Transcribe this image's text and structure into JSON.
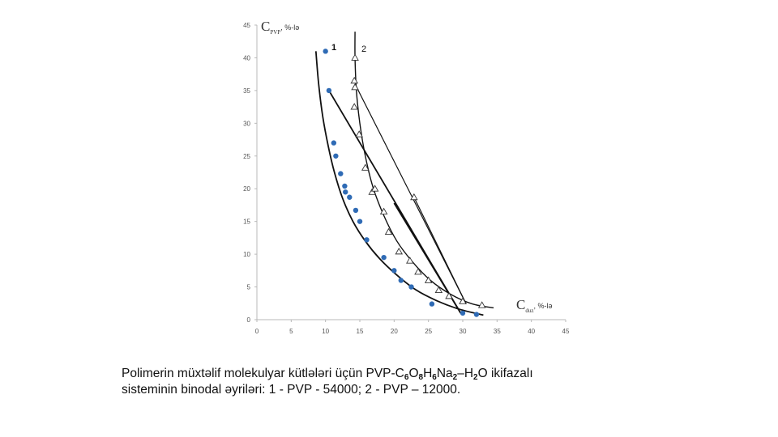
{
  "chart_data": {
    "type": "scatter",
    "x_axis": {
      "range": [
        0,
        45
      ],
      "ticks": [
        0,
        5,
        10,
        15,
        20,
        25,
        30,
        35,
        40,
        45
      ]
    },
    "y_axis": {
      "range": [
        0,
        45
      ],
      "ticks": [
        0,
        5,
        10,
        15,
        20,
        25,
        30,
        35,
        40,
        45
      ]
    },
    "ylabel": {
      "main": "C",
      "sub": "PVP",
      "unit": ", %-lə"
    },
    "xlabel": {
      "main": "C",
      "sub": "duz",
      "unit": ", %-lə"
    },
    "series": [
      {
        "name": "1",
        "marker": "circle",
        "color": "#2f6bb5",
        "points": [
          [
            10,
            41
          ],
          [
            10.5,
            35
          ],
          [
            11.2,
            27
          ],
          [
            11.5,
            25
          ],
          [
            12.2,
            22.3
          ],
          [
            12.8,
            20.4
          ],
          [
            12.9,
            19.5
          ],
          [
            13.5,
            18.7
          ],
          [
            14.4,
            16.7
          ],
          [
            15,
            15
          ],
          [
            16,
            12.2
          ],
          [
            18.5,
            9.5
          ],
          [
            20,
            7.5
          ],
          [
            21,
            6
          ],
          [
            22.5,
            5
          ],
          [
            25.5,
            2.4
          ],
          [
            30,
            1
          ],
          [
            32,
            0.8
          ]
        ],
        "binodal": [
          [
            8.6,
            41
          ],
          [
            9,
            36
          ],
          [
            9.6,
            31
          ],
          [
            10.4,
            26.5
          ],
          [
            11.3,
            22.5
          ],
          [
            12.5,
            18.5
          ],
          [
            14,
            15
          ],
          [
            15.8,
            12
          ],
          [
            17.9,
            9.3
          ],
          [
            20.3,
            6.9
          ],
          [
            23.1,
            4.6
          ],
          [
            26.2,
            2.9
          ],
          [
            29.5,
            1.6
          ],
          [
            33,
            0.7
          ]
        ],
        "tie_lines": [
          [
            [
              10.5,
              35
            ],
            [
              29.7,
              1
            ]
          ],
          [
            [
              20,
              17.8
            ],
            [
              29.7,
              1
            ]
          ]
        ]
      },
      {
        "name": "2",
        "marker": "triangle",
        "color": "#333333",
        "points": [
          [
            14.3,
            40
          ],
          [
            14.2,
            36.5
          ],
          [
            14.3,
            35.5
          ],
          [
            14.2,
            32.5
          ],
          [
            14.9,
            28.3
          ],
          [
            15.8,
            23.2
          ],
          [
            16.8,
            19.5
          ],
          [
            17.2,
            20
          ],
          [
            18.5,
            16.5
          ],
          [
            19.2,
            13.4
          ],
          [
            20.7,
            10.4
          ],
          [
            22.3,
            9
          ],
          [
            23.5,
            7.3
          ],
          [
            25,
            6
          ],
          [
            26.5,
            4.5
          ],
          [
            28,
            3.6
          ],
          [
            30,
            2.8
          ],
          [
            32.8,
            2.2
          ],
          [
            22.9,
            18.7
          ]
        ],
        "binodal": [
          [
            14.3,
            44
          ],
          [
            14.3,
            40
          ],
          [
            14.5,
            35
          ],
          [
            15,
            30
          ],
          [
            15.8,
            25
          ],
          [
            16.9,
            20.3
          ],
          [
            18.5,
            15.9
          ],
          [
            20.4,
            12
          ],
          [
            22.7,
            8.8
          ],
          [
            25.3,
            6
          ],
          [
            28.2,
            3.9
          ],
          [
            31.4,
            2.4
          ],
          [
            34.5,
            1.8
          ]
        ],
        "tie_lines": [
          [
            [
              14.3,
              36
            ],
            [
              30.5,
              2.4
            ]
          ],
          [
            [
              22.9,
              18.7
            ],
            [
              30.5,
              2.4
            ]
          ]
        ]
      }
    ],
    "annotations": [
      "1",
      "2"
    ]
  },
  "caption": {
    "line1": [
      {
        "t": "Polimerin müxtəlif molekulyar kütlələri üçün PVP-C"
      },
      {
        "t": "6",
        "sub": true
      },
      {
        "t": "O"
      },
      {
        "t": "8",
        "sub": true
      },
      {
        "t": "H"
      },
      {
        "t": "6",
        "sub": true
      },
      {
        "t": "Na"
      },
      {
        "t": "2",
        "sub": true
      },
      {
        "t": "–H"
      },
      {
        "t": "2",
        "sub": true
      },
      {
        "t": "O ikifazalı"
      }
    ],
    "line2": " sisteminin binodal əyriləri: 1 - PVP - 54000; 2 - PVP – 12000."
  }
}
